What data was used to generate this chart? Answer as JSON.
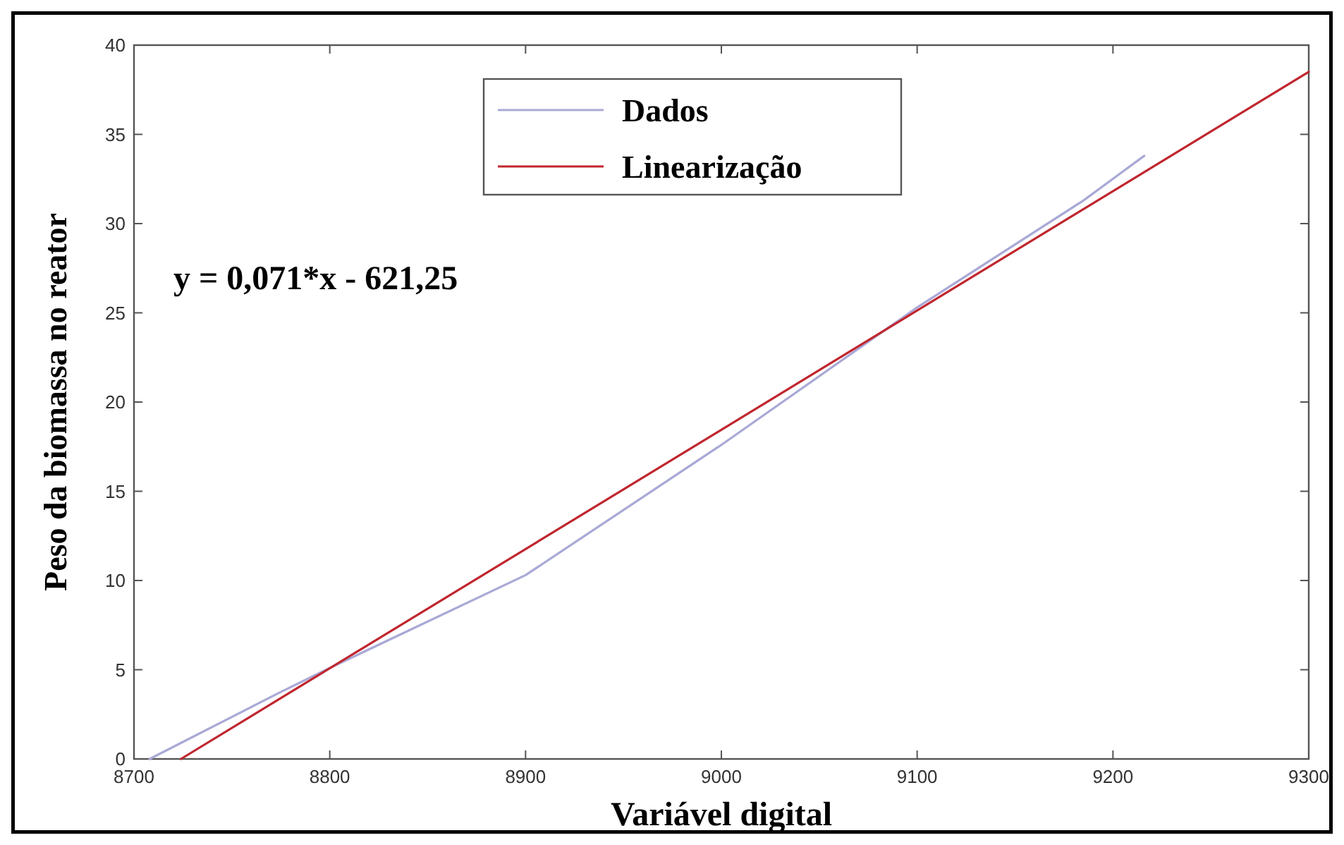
{
  "chart_data": {
    "type": "line",
    "xlabel": "Variável digital",
    "ylabel": "Peso da biomassa no reator",
    "xlim": [
      8700,
      9300
    ],
    "xticks": [
      8700,
      8800,
      8900,
      9000,
      9100,
      9200,
      9300
    ],
    "ylim": [
      0,
      40
    ],
    "yticks": [
      0,
      5,
      10,
      15,
      20,
      25,
      30,
      35,
      40
    ],
    "grid": false,
    "legend": "top",
    "line_style": "solid",
    "annotations": [
      "y = 0,071*x - 621,25"
    ],
    "series": [
      {
        "name": "Dados",
        "color": "#a9a9d6",
        "x": [
          8708,
          8774,
          8800,
          8900,
          9000,
          9100,
          9185,
          9216
        ],
        "values": [
          0,
          3.7,
          5.1,
          10.3,
          17.6,
          25.3,
          31.3,
          33.8
        ]
      },
      {
        "name": "Linearização",
        "color": "#c0262e",
        "x": [
          8724,
          9300
        ],
        "values": [
          0,
          38.5
        ]
      }
    ]
  }
}
